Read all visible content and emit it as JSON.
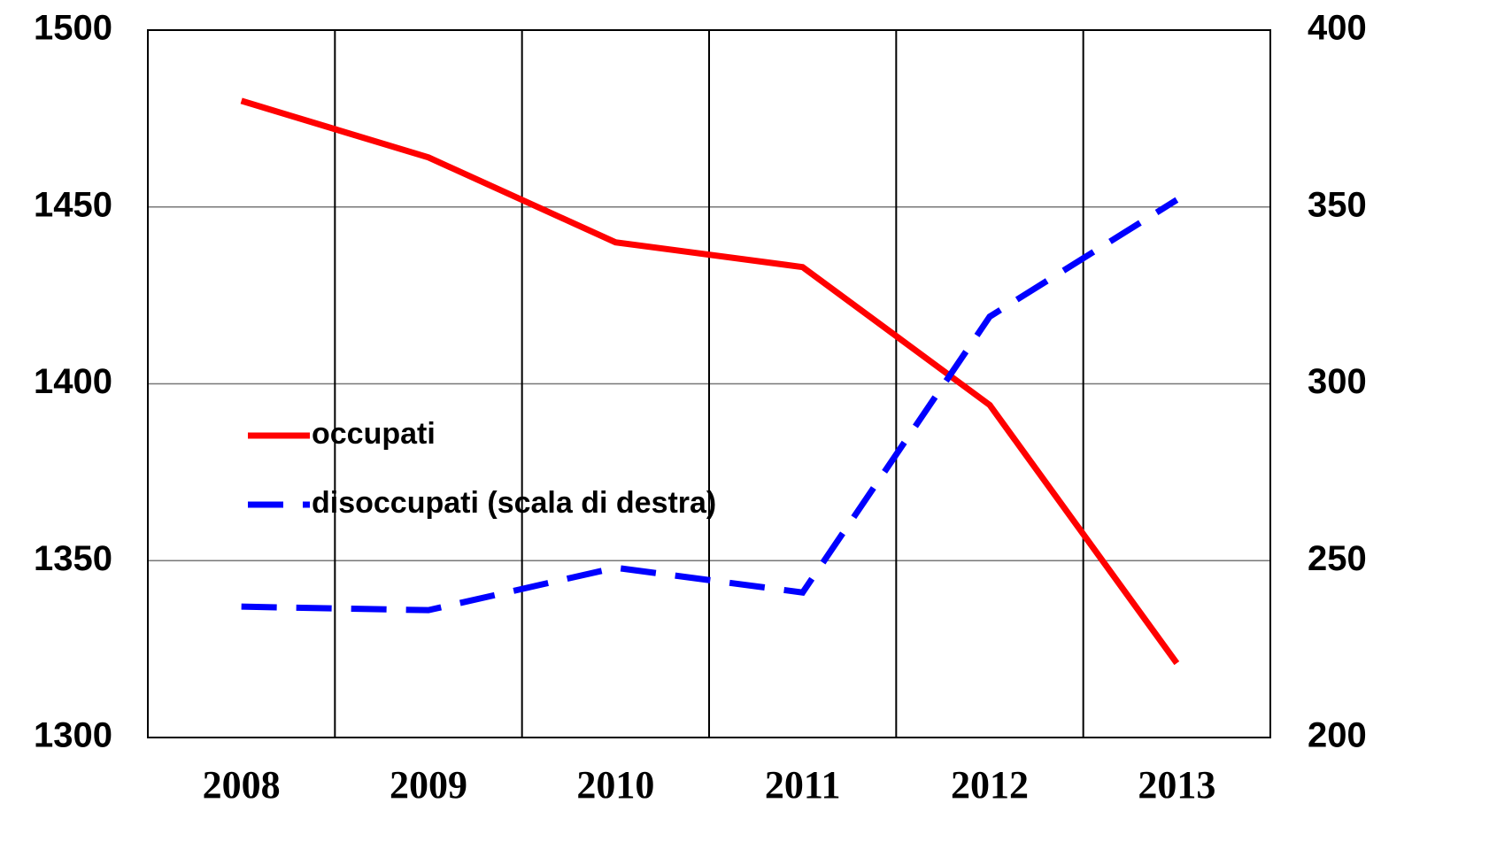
{
  "chart_data": {
    "type": "line",
    "categories": [
      "2008",
      "2009",
      "2010",
      "2011",
      "2012",
      "2013"
    ],
    "series": [
      {
        "name": "occupati",
        "color": "#ff0000",
        "values": [
          1480,
          1464,
          1440,
          1433,
          1394,
          1321
        ]
      },
      {
        "name": "disoccupati (scala di destra)",
        "color": "#0000ff",
        "axis": "y2",
        "dashed": true,
        "values": [
          237,
          236,
          248,
          241,
          319,
          352
        ]
      }
    ],
    "ylim": [
      1300,
      1500
    ],
    "yticks": [
      1300,
      1350,
      1400,
      1450,
      1500
    ],
    "y2lim": [
      200,
      400
    ],
    "y2ticks": [
      200,
      250,
      300,
      350,
      400
    ],
    "grid": true,
    "legend": "left"
  }
}
